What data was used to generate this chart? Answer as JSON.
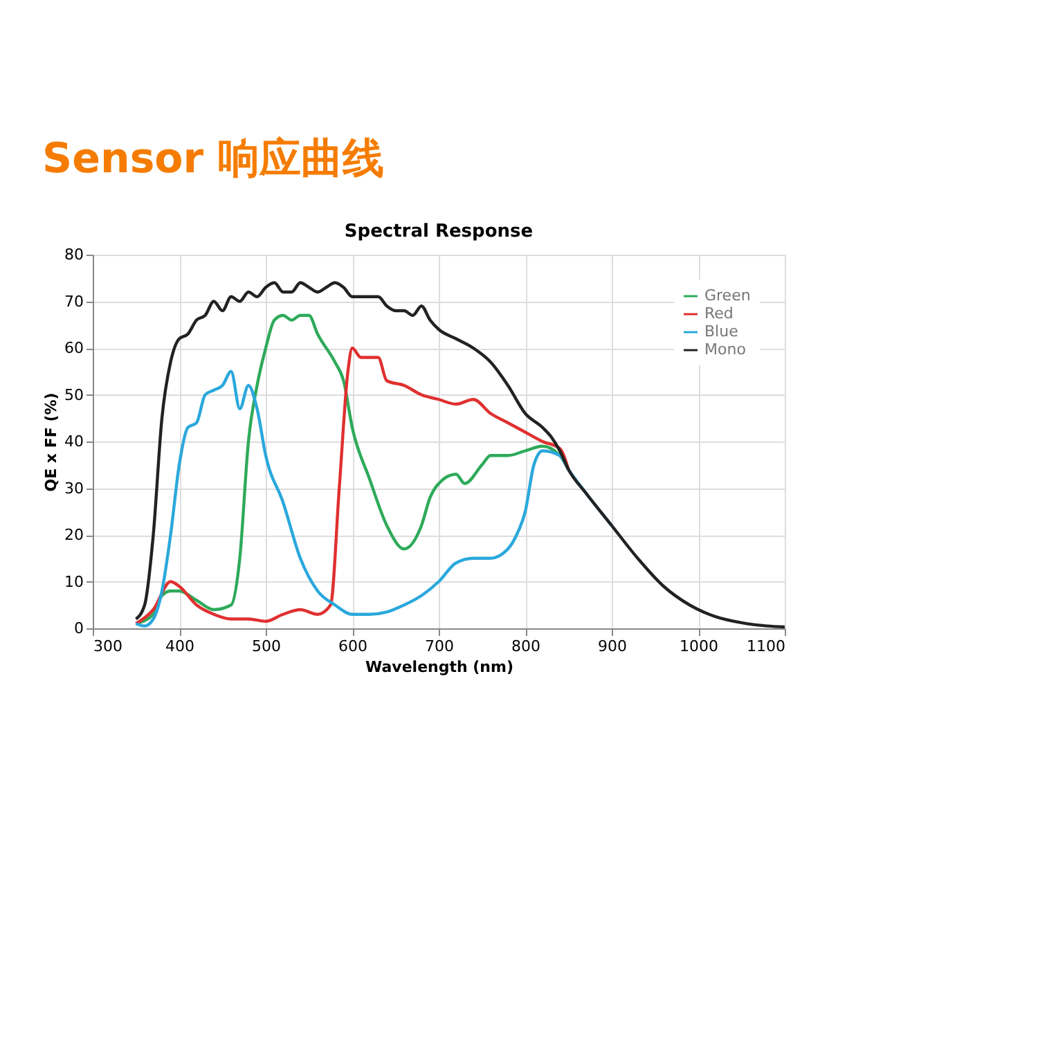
{
  "chart_data": {
    "type": "line",
    "title": "Sensor 响应曲线",
    "subtitle": "Spectral Response",
    "xlabel": "Wavelength (nm)",
    "ylabel": "QE x FF (%)",
    "xlim": [
      300,
      1100
    ],
    "xticks": [
      300,
      400,
      500,
      600,
      700,
      800,
      900,
      1000,
      1100
    ],
    "ylim": [
      0,
      80
    ],
    "yticks": [
      0,
      10,
      20,
      30,
      40,
      50,
      60,
      70,
      80
    ],
    "grid": true,
    "legend": "top right",
    "marker": "none",
    "line_style": "solid",
    "series": [
      {
        "name": "Green",
        "color": "#2eaa5a",
        "x": [
          350,
          370,
          380,
          390,
          400,
          420,
          440,
          460,
          470,
          480,
          490,
          500,
          510,
          520,
          530,
          540,
          550,
          560,
          580,
          590,
          600,
          620,
          640,
          660,
          680,
          690,
          700,
          720,
          730,
          750,
          760,
          780,
          800,
          820,
          840,
          850
        ],
        "values": [
          1,
          3,
          7,
          8,
          8,
          6,
          4,
          5,
          15,
          40,
          52,
          60,
          66,
          67,
          66,
          67,
          67,
          63,
          57,
          53,
          43,
          32,
          22,
          17,
          22,
          28,
          31,
          33,
          31,
          35,
          37,
          37,
          38,
          39,
          37,
          34
        ]
      },
      {
        "name": "Red",
        "color": "#e03030",
        "x": [
          350,
          370,
          390,
          400,
          420,
          440,
          460,
          480,
          500,
          520,
          540,
          560,
          575,
          585,
          595,
          600,
          610,
          630,
          640,
          660,
          680,
          700,
          720,
          740,
          760,
          780,
          800,
          820,
          840,
          850
        ],
        "values": [
          1,
          4,
          10,
          9,
          5,
          3,
          2,
          2,
          1.5,
          3,
          4,
          3,
          5,
          30,
          55,
          60,
          58,
          58,
          53,
          52,
          50,
          49,
          48,
          49,
          46,
          44,
          42,
          40,
          38.5,
          34
        ]
      },
      {
        "name": "Blue",
        "color": "#2aa8dc",
        "x": [
          350,
          360,
          370,
          380,
          390,
          400,
          410,
          420,
          430,
          440,
          450,
          460,
          470,
          480,
          490,
          500,
          520,
          540,
          560,
          580,
          600,
          620,
          640,
          660,
          680,
          700,
          720,
          740,
          760,
          780,
          790,
          800,
          810,
          820,
          840,
          850,
          870,
          900
        ],
        "values": [
          1,
          0.5,
          2,
          8,
          20,
          35,
          43,
          44,
          50,
          51,
          52,
          55,
          47,
          52,
          47,
          37,
          27,
          15,
          8,
          5,
          3,
          3,
          3.5,
          5,
          7,
          10,
          14,
          15,
          15,
          17,
          20,
          25,
          35,
          38,
          37,
          34,
          29,
          22
        ]
      },
      {
        "name": "Mono",
        "color": "#222222",
        "x": [
          350,
          360,
          370,
          380,
          390,
          400,
          410,
          420,
          430,
          440,
          450,
          460,
          470,
          480,
          490,
          500,
          510,
          520,
          530,
          540,
          550,
          560,
          570,
          580,
          590,
          600,
          610,
          620,
          630,
          640,
          650,
          660,
          670,
          680,
          690,
          700,
          720,
          740,
          760,
          780,
          800,
          820,
          830,
          840,
          850,
          870,
          900,
          930,
          960,
          990,
          1020,
          1050,
          1080,
          1100
        ],
        "values": [
          2,
          5,
          20,
          45,
          57,
          62,
          63,
          66,
          67,
          70,
          68,
          71,
          70,
          72,
          71,
          73,
          74,
          72,
          72,
          74,
          73,
          72,
          73,
          74,
          73,
          71,
          71,
          71,
          71,
          69,
          68,
          68,
          67,
          69,
          66,
          64,
          62,
          60,
          57,
          52,
          46,
          43,
          41,
          38,
          34,
          29,
          22,
          15,
          9,
          5,
          2.5,
          1.2,
          0.5,
          0.3
        ]
      }
    ]
  }
}
